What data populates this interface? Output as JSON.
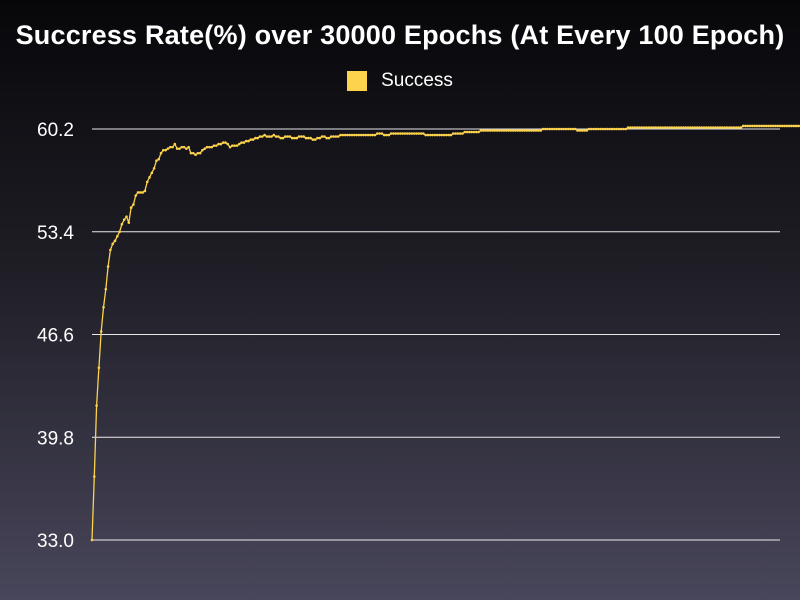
{
  "colors": {
    "series": "#fdd24d",
    "grid": "#ffffff",
    "text": "#ffffff"
  },
  "chart_data": {
    "type": "line",
    "title": "Succress Rate(%) over 30000 Epochs (At Every 100 Epoch)",
    "xlabel": "",
    "ylabel": "",
    "xlim": [
      100,
      30000
    ],
    "ylim": [
      33.0,
      60.2
    ],
    "yticks": [
      "33.0",
      "39.8",
      "46.6",
      "53.4",
      "60.2"
    ],
    "grid": true,
    "legend_position": "top-center",
    "series": [
      {
        "name": "Success",
        "x_start": 100,
        "x_step": 100,
        "values": [
          33.0,
          37.2,
          41.9,
          44.4,
          46.8,
          48.4,
          49.6,
          51.1,
          52.2,
          52.6,
          52.8,
          53.1,
          53.4,
          53.9,
          54.2,
          54.4,
          54.0,
          55.0,
          55.2,
          55.8,
          56.0,
          56.0,
          56.0,
          56.1,
          56.7,
          57.0,
          57.3,
          57.6,
          58.1,
          58.2,
          58.6,
          58.8,
          58.8,
          58.9,
          59.0,
          59.0,
          59.2,
          58.9,
          58.9,
          59.0,
          59.0,
          58.9,
          59.0,
          58.6,
          58.6,
          58.5,
          58.6,
          58.6,
          58.8,
          58.9,
          59.0,
          59.0,
          59.0,
          59.1,
          59.1,
          59.2,
          59.2,
          59.3,
          59.3,
          59.2,
          59.0,
          59.1,
          59.1,
          59.1,
          59.2,
          59.3,
          59.3,
          59.4,
          59.4,
          59.5,
          59.5,
          59.6,
          59.6,
          59.7,
          59.7,
          59.8,
          59.7,
          59.7,
          59.7,
          59.8,
          59.7,
          59.7,
          59.6,
          59.6,
          59.7,
          59.7,
          59.7,
          59.6,
          59.6,
          59.6,
          59.7,
          59.7,
          59.7,
          59.6,
          59.6,
          59.6,
          59.5,
          59.5,
          59.6,
          59.6,
          59.7,
          59.7,
          59.6,
          59.6,
          59.7,
          59.7,
          59.7,
          59.7,
          59.8,
          59.8,
          59.8,
          59.8,
          59.8,
          59.8,
          59.8,
          59.8,
          59.8,
          59.8,
          59.8,
          59.8,
          59.8,
          59.8,
          59.8,
          59.8,
          59.9,
          59.9,
          59.9,
          59.8,
          59.8,
          59.8,
          59.9,
          59.9,
          59.9,
          59.9,
          59.9,
          59.9,
          59.9,
          59.9,
          59.9,
          59.9,
          59.9,
          59.9,
          59.9,
          59.9,
          59.9,
          59.8,
          59.8,
          59.8,
          59.8,
          59.8,
          59.8,
          59.8,
          59.8,
          59.8,
          59.8,
          59.8,
          59.8,
          59.9,
          59.9,
          59.9,
          59.9,
          59.9,
          60.0,
          60.0,
          60.0,
          60.0,
          60.0,
          60.0,
          60.0,
          60.1,
          60.1,
          60.1,
          60.1,
          60.1,
          60.1,
          60.1,
          60.1,
          60.1,
          60.1,
          60.1,
          60.1,
          60.1,
          60.1,
          60.1,
          60.1,
          60.1,
          60.1,
          60.1,
          60.1,
          60.1,
          60.1,
          60.1,
          60.1,
          60.1,
          60.1,
          60.1,
          60.2,
          60.2,
          60.2,
          60.2,
          60.2,
          60.2,
          60.2,
          60.2,
          60.2,
          60.2,
          60.2,
          60.2,
          60.2,
          60.2,
          60.2,
          60.1,
          60.1,
          60.1,
          60.1,
          60.1,
          60.2,
          60.2,
          60.2,
          60.2,
          60.2,
          60.2,
          60.2,
          60.2,
          60.2,
          60.2,
          60.2,
          60.2,
          60.2,
          60.2,
          60.2,
          60.2,
          60.2,
          60.3,
          60.3,
          60.3,
          60.3,
          60.3,
          60.3,
          60.3,
          60.3,
          60.3,
          60.3,
          60.3,
          60.3,
          60.3,
          60.3,
          60.3,
          60.3,
          60.3,
          60.3,
          60.3,
          60.3,
          60.3,
          60.3,
          60.3,
          60.3,
          60.3,
          60.3,
          60.3,
          60.3,
          60.3,
          60.3,
          60.3,
          60.3,
          60.3,
          60.3,
          60.3,
          60.3,
          60.3,
          60.3,
          60.3,
          60.3,
          60.3,
          60.3,
          60.3,
          60.3,
          60.3,
          60.3,
          60.3,
          60.3,
          60.3,
          60.3,
          60.4,
          60.4,
          60.4,
          60.4,
          60.4,
          60.4,
          60.4,
          60.4,
          60.4,
          60.4,
          60.4,
          60.4,
          60.4,
          60.4,
          60.4,
          60.4,
          60.4,
          60.4,
          60.4,
          60.4,
          60.4,
          60.4,
          60.4,
          60.4,
          60.4,
          60.4,
          60.4,
          60.4,
          60.4,
          60.4,
          60.5,
          60.5,
          60.5
        ]
      }
    ]
  }
}
